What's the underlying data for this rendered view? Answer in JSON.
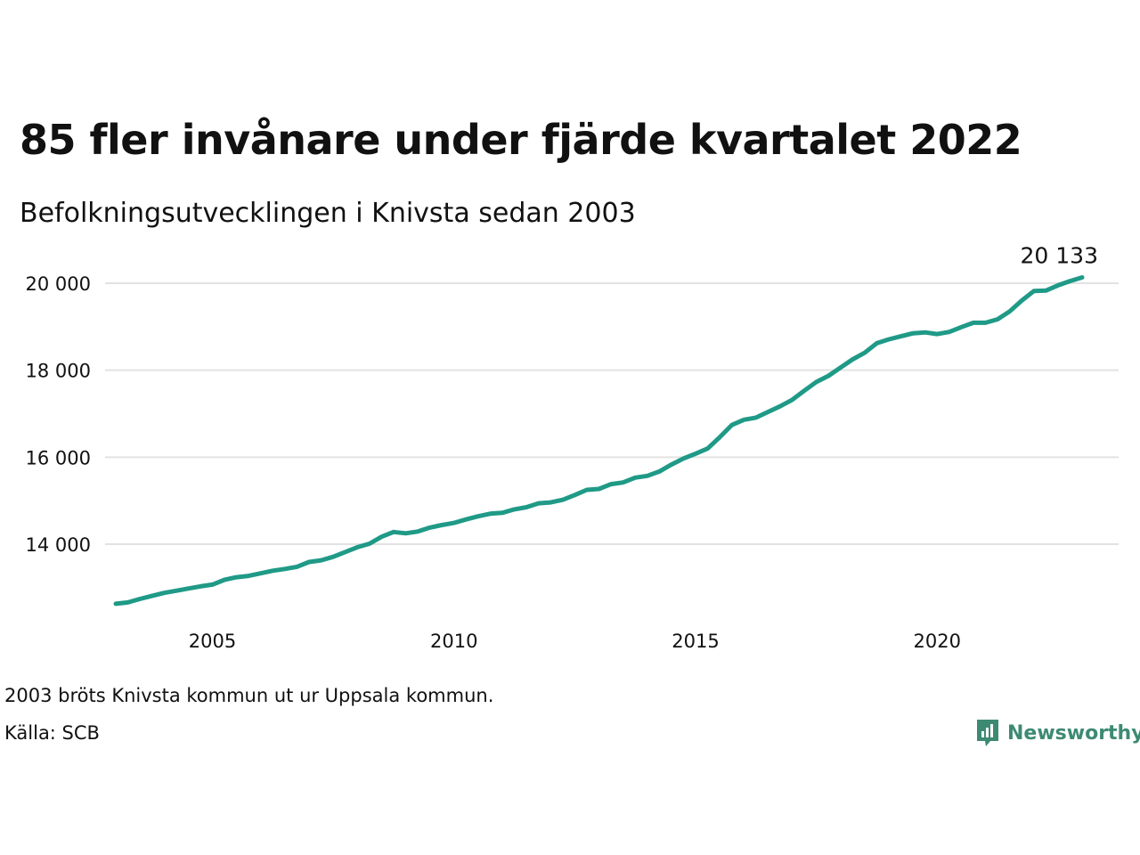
{
  "title": "85 fler invånare under fjärde kvartalet 2022",
  "subtitle": "Befolkningsutvecklingen i Knivsta sedan 2003",
  "notes": {
    "note": "2003 bröts Knivsta kommun ut ur Uppsala kommun.",
    "source": "Källa: SCB"
  },
  "brand": {
    "name": "Newsworthy",
    "color": "#3d8a73"
  },
  "chart_data": {
    "type": "line",
    "title": "85 fler invånare under fjärde kvartalet 2022",
    "subtitle": "Befolkningsutvecklingen i Knivsta sedan 2003",
    "xlim": [
      2003.0,
      2023.0
    ],
    "ylim": [
      12100,
      20500
    ],
    "x_ticks": [
      2005,
      2010,
      2015,
      2020
    ],
    "x_tick_labels": [
      "2005",
      "2010",
      "2015",
      "2020"
    ],
    "y_ticks": [
      14000,
      16000,
      18000,
      20000
    ],
    "y_tick_labels": [
      "14 000",
      "16 000",
      "18 000",
      "20 000"
    ],
    "grid": "horizontal",
    "line_color": "#1f9a87",
    "end_label": "20 133",
    "series": [
      {
        "x": [
          2003.0,
          2003.25,
          2003.5,
          2003.75,
          2004.0,
          2004.25,
          2004.5,
          2004.75,
          2005.0,
          2005.25,
          2005.5,
          2005.75,
          2006.0,
          2006.25,
          2006.5,
          2006.75,
          2007.0,
          2007.25,
          2007.5,
          2007.75,
          2008.0,
          2008.25,
          2008.5,
          2008.75,
          2009.0,
          2009.25,
          2009.5,
          2009.75,
          2010.0,
          2010.25,
          2010.5,
          2010.75,
          2011.0,
          2011.25,
          2011.5,
          2011.75,
          2012.0,
          2012.25,
          2012.5,
          2012.75,
          2013.0,
          2013.25,
          2013.5,
          2013.75,
          2014.0,
          2014.25,
          2014.5,
          2014.75,
          2015.0,
          2015.25,
          2015.5,
          2015.75,
          2016.0,
          2016.25,
          2016.5,
          2016.75,
          2017.0,
          2017.25,
          2017.5,
          2017.75,
          2018.0,
          2018.25,
          2018.5,
          2018.75,
          2019.0,
          2019.25,
          2019.5,
          2019.75,
          2020.0,
          2020.25,
          2020.5,
          2020.75,
          2021.0,
          2021.25,
          2021.5,
          2021.75,
          2022.0,
          2022.25,
          2022.5,
          2022.75,
          2023.0
        ],
        "values": [
          12630,
          12660,
          12740,
          12810,
          12880,
          12930,
          12980,
          13030,
          13070,
          13180,
          13240,
          13270,
          13330,
          13390,
          13430,
          13480,
          13590,
          13630,
          13710,
          13820,
          13930,
          14010,
          14170,
          14280,
          14250,
          14290,
          14380,
          14440,
          14490,
          14570,
          14640,
          14700,
          14720,
          14800,
          14850,
          14940,
          14960,
          15020,
          15130,
          15250,
          15270,
          15380,
          15420,
          15530,
          15570,
          15670,
          15830,
          15970,
          16080,
          16200,
          16460,
          16740,
          16860,
          16910,
          17040,
          17170,
          17320,
          17530,
          17730,
          17870,
          18060,
          18250,
          18400,
          18620,
          18710,
          18780,
          18850,
          18870,
          18830,
          18880,
          18990,
          19090,
          19090,
          19170,
          19350,
          19600,
          19820,
          19830,
          19950,
          20050,
          20133
        ]
      }
    ]
  }
}
